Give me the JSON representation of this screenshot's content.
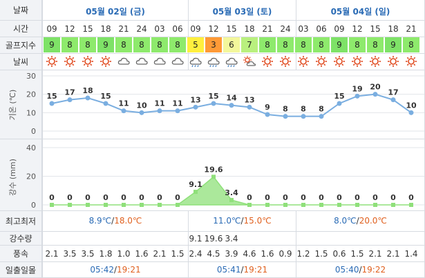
{
  "labels": {
    "date": "날짜",
    "time": "시간",
    "golf_index": "골프지수",
    "weather": "날씨",
    "temp_axis": "기온 (℃)",
    "precip_axis": "강수 (mm)",
    "minmax": "최고최저",
    "precip_amount": "강수량",
    "wind": "풍속",
    "sunrise_sunset": "일출일몰"
  },
  "dates": [
    "05월 02일 (금)",
    "05월 03일 (토)",
    "05월 04일 (일)"
  ],
  "hours": [
    "09",
    "12",
    "15",
    "18",
    "21",
    "24",
    "03",
    "06",
    "09",
    "12",
    "15",
    "18",
    "21",
    "24",
    "03",
    "06",
    "09",
    "12",
    "15",
    "18",
    "21"
  ],
  "golf_index": [
    9,
    8,
    8,
    9,
    8,
    8,
    8,
    8,
    5,
    3,
    6,
    7,
    8,
    8,
    8,
    8,
    9,
    8,
    8,
    9,
    8
  ],
  "golf_colors": {
    "9": "#7ee267",
    "8": "#8eea6c",
    "7": "#b9f07e",
    "6": "#f3f79b",
    "5": "#ffef3e",
    "3": "#ff9a36"
  },
  "weather_icons": [
    "sun-icon",
    "sun-icon",
    "sun-icon",
    "sun-icon",
    "cloud-icon",
    "cloud-icon",
    "cloud-icon",
    "cloud-icon",
    "rain-icon",
    "rain-icon",
    "rain-icon",
    "partly-cloudy-icon",
    "sun-icon",
    "sun-icon",
    "sun-icon",
    "sun-icon",
    "sun-icon",
    "sun-icon",
    "sun-icon",
    "sun-icon",
    "sun-icon"
  ],
  "chart_data": [
    {
      "type": "line",
      "ylabel": "기온 (℃)",
      "ylim": [
        0,
        30
      ],
      "yticks": [
        0,
        10,
        20,
        30
      ],
      "categories": [
        "09",
        "12",
        "15",
        "18",
        "21",
        "24",
        "03",
        "06",
        "09",
        "12",
        "15",
        "18",
        "21",
        "24",
        "03",
        "06",
        "09",
        "12",
        "15",
        "18",
        "21"
      ],
      "values": [
        15,
        17,
        18,
        15,
        11,
        10,
        11,
        11,
        13,
        15,
        14,
        13,
        9,
        8,
        8,
        8,
        15,
        19,
        20,
        17,
        10
      ],
      "color": "#7aaee0"
    },
    {
      "type": "area",
      "ylabel": "강수 (mm)",
      "ylim": [
        0,
        40
      ],
      "yticks": [
        0,
        20,
        40
      ],
      "categories": [
        "09",
        "12",
        "15",
        "18",
        "21",
        "24",
        "03",
        "06",
        "09",
        "12",
        "15",
        "18",
        "21",
        "24",
        "03",
        "06",
        "09",
        "12",
        "15",
        "18",
        "21"
      ],
      "values": [
        0,
        0,
        0,
        0,
        0,
        0,
        0,
        0,
        9.1,
        19.6,
        3.4,
        0,
        0,
        0,
        0,
        0,
        0,
        0,
        0,
        0,
        0
      ],
      "labels": [
        "0",
        "0",
        "0",
        "0",
        "0",
        "0",
        "0",
        "0",
        "9.1",
        "19.6",
        "3.4",
        "0",
        "0",
        "0",
        "0",
        "0",
        "0",
        "0",
        "0",
        "0",
        "0"
      ],
      "color": "#8fe07a"
    }
  ],
  "minmax": [
    {
      "min": "8.9℃",
      "max": "18.0℃"
    },
    {
      "min": "11.0℃",
      "max": "15.0℃"
    },
    {
      "min": "8.0℃",
      "max": "20.0℃"
    }
  ],
  "minmax_sep": "/",
  "precip_amounts": [
    "",
    "",
    "",
    "",
    "",
    "",
    "",
    "",
    "9.1",
    "19.6",
    "3.4",
    "",
    "",
    "",
    "",
    "",
    "",
    "",
    "",
    "",
    ""
  ],
  "wind": [
    "2.1",
    "3.5",
    "3.5",
    "1.8",
    "1.0",
    "1.6",
    "2.1",
    "1.5",
    "2.4",
    "4.5",
    "3.9",
    "4.6",
    "1.6",
    "0.9",
    "1.2",
    "1.5",
    "0.6",
    "1.5",
    "2.1",
    "2.1",
    "1.4"
  ],
  "sun": [
    {
      "rise": "05:42",
      "set": "19:21"
    },
    {
      "rise": "05:41",
      "set": "19:21"
    },
    {
      "rise": "05:40",
      "set": "19:22"
    }
  ],
  "colors": {
    "min": "#2a6bb5",
    "max": "#e0601e",
    "date": "#2a6bb5"
  }
}
